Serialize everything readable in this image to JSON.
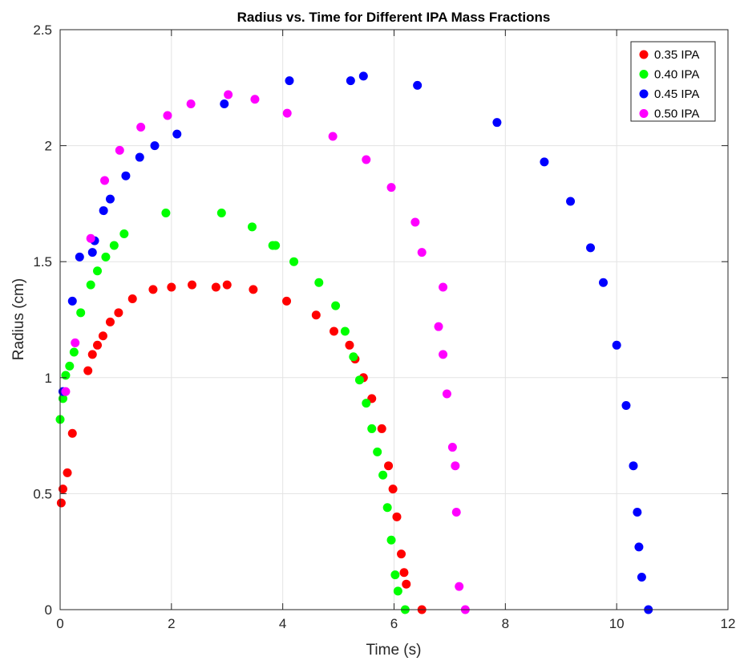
{
  "chart_data": {
    "type": "scatter",
    "title": "Radius vs. Time for Different IPA Mass Fractions",
    "xlabel": "Time (s)",
    "ylabel": "Radius (cm)",
    "xlim": [
      0,
      12
    ],
    "ylim": [
      0,
      2.5
    ],
    "xticks": [
      0,
      2,
      4,
      6,
      8,
      10,
      12
    ],
    "xtick_labels": [
      "0",
      "2",
      "4",
      "6",
      "8",
      "10",
      "12"
    ],
    "yticks": [
      0,
      0.5,
      1,
      1.5,
      2,
      2.5
    ],
    "ytick_labels": [
      "0",
      "0.5",
      "1",
      "1.5",
      "2",
      "2.5"
    ],
    "grid": true,
    "legend_position": "top-right",
    "series": [
      {
        "name": "0.35 IPA",
        "color": "#ff0000",
        "points": [
          [
            0.02,
            0.46
          ],
          [
            0.05,
            0.52
          ],
          [
            0.13,
            0.59
          ],
          [
            0.22,
            0.76
          ],
          [
            0.5,
            1.03
          ],
          [
            0.58,
            1.1
          ],
          [
            0.67,
            1.14
          ],
          [
            0.77,
            1.18
          ],
          [
            0.9,
            1.24
          ],
          [
            1.05,
            1.28
          ],
          [
            1.3,
            1.34
          ],
          [
            1.67,
            1.38
          ],
          [
            2.0,
            1.39
          ],
          [
            2.37,
            1.4
          ],
          [
            2.8,
            1.39
          ],
          [
            3.0,
            1.4
          ],
          [
            3.47,
            1.38
          ],
          [
            4.07,
            1.33
          ],
          [
            4.6,
            1.27
          ],
          [
            4.92,
            1.2
          ],
          [
            5.2,
            1.14
          ],
          [
            5.3,
            1.08
          ],
          [
            5.45,
            1.0
          ],
          [
            5.6,
            0.91
          ],
          [
            5.78,
            0.78
          ],
          [
            5.9,
            0.62
          ],
          [
            5.98,
            0.52
          ],
          [
            6.05,
            0.4
          ],
          [
            6.13,
            0.24
          ],
          [
            6.18,
            0.16
          ],
          [
            6.22,
            0.11
          ],
          [
            6.5,
            0.0
          ]
        ]
      },
      {
        "name": "0.40 IPA",
        "color": "#00ff00",
        "points": [
          [
            0.0,
            0.82
          ],
          [
            0.05,
            0.91
          ],
          [
            0.1,
            1.01
          ],
          [
            0.17,
            1.05
          ],
          [
            0.25,
            1.11
          ],
          [
            0.37,
            1.28
          ],
          [
            0.55,
            1.4
          ],
          [
            0.67,
            1.46
          ],
          [
            0.82,
            1.52
          ],
          [
            0.97,
            1.57
          ],
          [
            1.15,
            1.62
          ],
          [
            1.9,
            1.71
          ],
          [
            2.9,
            1.71
          ],
          [
            3.45,
            1.65
          ],
          [
            3.82,
            1.57
          ],
          [
            3.87,
            1.57
          ],
          [
            4.2,
            1.5
          ],
          [
            4.65,
            1.41
          ],
          [
            4.95,
            1.31
          ],
          [
            5.12,
            1.2
          ],
          [
            5.27,
            1.09
          ],
          [
            5.38,
            0.99
          ],
          [
            5.5,
            0.89
          ],
          [
            5.6,
            0.78
          ],
          [
            5.7,
            0.68
          ],
          [
            5.8,
            0.58
          ],
          [
            5.88,
            0.44
          ],
          [
            5.95,
            0.3
          ],
          [
            6.02,
            0.15
          ],
          [
            6.07,
            0.08
          ],
          [
            6.2,
            0.0
          ]
        ]
      },
      {
        "name": "0.45 IPA",
        "color": "#0000ff",
        "points": [
          [
            0.05,
            0.94
          ],
          [
            0.22,
            1.33
          ],
          [
            0.35,
            1.52
          ],
          [
            0.58,
            1.54
          ],
          [
            0.62,
            1.59
          ],
          [
            0.78,
            1.72
          ],
          [
            0.9,
            1.77
          ],
          [
            1.18,
            1.87
          ],
          [
            1.43,
            1.95
          ],
          [
            1.7,
            2.0
          ],
          [
            2.1,
            2.05
          ],
          [
            2.95,
            2.18
          ],
          [
            4.12,
            2.28
          ],
          [
            5.22,
            2.28
          ],
          [
            5.45,
            2.3
          ],
          [
            6.42,
            2.26
          ],
          [
            7.85,
            2.1
          ],
          [
            8.7,
            1.93
          ],
          [
            9.17,
            1.76
          ],
          [
            9.53,
            1.56
          ],
          [
            9.76,
            1.41
          ],
          [
            10.0,
            1.14
          ],
          [
            10.17,
            0.88
          ],
          [
            10.3,
            0.62
          ],
          [
            10.37,
            0.42
          ],
          [
            10.4,
            0.27
          ],
          [
            10.45,
            0.14
          ],
          [
            10.57,
            0.0
          ]
        ]
      },
      {
        "name": "0.50 IPA",
        "color": "#ff00ff",
        "points": [
          [
            0.1,
            0.94
          ],
          [
            0.27,
            1.15
          ],
          [
            0.55,
            1.6
          ],
          [
            0.8,
            1.85
          ],
          [
            1.07,
            1.98
          ],
          [
            1.45,
            2.08
          ],
          [
            1.93,
            2.13
          ],
          [
            2.35,
            2.18
          ],
          [
            3.02,
            2.22
          ],
          [
            3.5,
            2.2
          ],
          [
            4.08,
            2.14
          ],
          [
            4.9,
            2.04
          ],
          [
            5.5,
            1.94
          ],
          [
            5.95,
            1.82
          ],
          [
            6.38,
            1.67
          ],
          [
            6.5,
            1.54
          ],
          [
            6.88,
            1.39
          ],
          [
            6.8,
            1.22
          ],
          [
            6.88,
            1.1
          ],
          [
            6.95,
            0.93
          ],
          [
            7.05,
            0.7
          ],
          [
            7.1,
            0.62
          ],
          [
            7.12,
            0.42
          ],
          [
            7.17,
            0.1
          ],
          [
            7.28,
            0.0
          ]
        ]
      }
    ]
  }
}
